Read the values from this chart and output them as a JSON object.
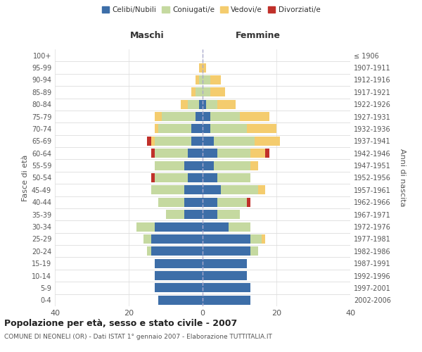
{
  "age_groups": [
    "0-4",
    "5-9",
    "10-14",
    "15-19",
    "20-24",
    "25-29",
    "30-34",
    "35-39",
    "40-44",
    "45-49",
    "50-54",
    "55-59",
    "60-64",
    "65-69",
    "70-74",
    "75-79",
    "80-84",
    "85-89",
    "90-94",
    "95-99",
    "100+"
  ],
  "birth_years": [
    "2002-2006",
    "1997-2001",
    "1992-1996",
    "1987-1991",
    "1982-1986",
    "1977-1981",
    "1972-1976",
    "1967-1971",
    "1962-1966",
    "1957-1961",
    "1952-1956",
    "1947-1951",
    "1942-1946",
    "1937-1941",
    "1932-1936",
    "1927-1931",
    "1922-1926",
    "1917-1921",
    "1912-1916",
    "1907-1911",
    "≤ 1906"
  ],
  "maschi": {
    "celibi": [
      12,
      13,
      13,
      13,
      14,
      14,
      13,
      5,
      5,
      5,
      4,
      5,
      4,
      3,
      3,
      2,
      1,
      0,
      0,
      0,
      0
    ],
    "coniugati": [
      0,
      0,
      0,
      0,
      1,
      2,
      5,
      5,
      7,
      9,
      9,
      8,
      9,
      10,
      9,
      9,
      3,
      2,
      1,
      0,
      0
    ],
    "vedovi": [
      0,
      0,
      0,
      0,
      0,
      0,
      0,
      0,
      0,
      0,
      0,
      0,
      0,
      1,
      1,
      2,
      2,
      1,
      1,
      1,
      0
    ],
    "divorziati": [
      0,
      0,
      0,
      0,
      0,
      0,
      0,
      0,
      0,
      0,
      1,
      0,
      1,
      1,
      0,
      0,
      0,
      0,
      0,
      0,
      0
    ]
  },
  "femmine": {
    "nubili": [
      13,
      13,
      12,
      12,
      13,
      13,
      7,
      4,
      4,
      5,
      4,
      3,
      4,
      3,
      2,
      2,
      1,
      0,
      0,
      0,
      0
    ],
    "coniugate": [
      0,
      0,
      0,
      0,
      2,
      3,
      6,
      6,
      8,
      10,
      9,
      10,
      9,
      11,
      10,
      8,
      3,
      2,
      2,
      0,
      0
    ],
    "vedove": [
      0,
      0,
      0,
      0,
      0,
      1,
      0,
      0,
      0,
      2,
      0,
      2,
      4,
      7,
      8,
      8,
      5,
      4,
      3,
      1,
      0
    ],
    "divorziate": [
      0,
      0,
      0,
      0,
      0,
      0,
      0,
      0,
      1,
      0,
      0,
      0,
      1,
      0,
      0,
      0,
      0,
      0,
      0,
      0,
      0
    ]
  },
  "colors": {
    "celibi": "#3d6ea8",
    "coniugati": "#c5d9a0",
    "vedovi": "#f4cc6e",
    "divorziati": "#c0302a"
  },
  "xlim": 40,
  "title": "Popolazione per età, sesso e stato civile - 2007",
  "subtitle": "COMUNE DI NEONELI (OR) - Dati ISTAT 1° gennaio 2007 - Elaborazione TUTTITALIA.IT",
  "ylabel_left": "Fasce di età",
  "ylabel_right": "Anni di nascita",
  "xlabel_left": "Maschi",
  "xlabel_right": "Femmine"
}
